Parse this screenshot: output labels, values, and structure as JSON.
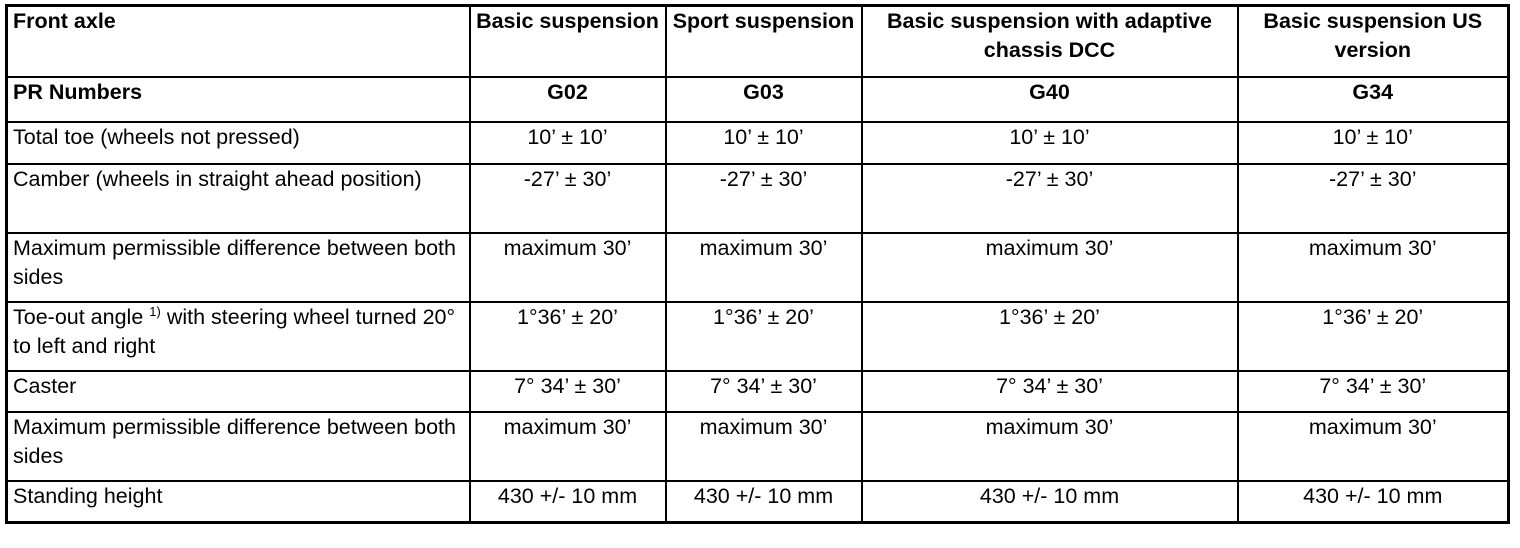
{
  "header": {
    "front_axle": "Front axle",
    "col1": "Basic suspension",
    "col2": "Sport suspension",
    "col3": "Basic suspension with adaptive chassis DCC",
    "col4": "Basic suspension US version"
  },
  "pr_row": {
    "label": "PR Numbers",
    "values": [
      "G02",
      "G03",
      "G40",
      "G34"
    ]
  },
  "rows": [
    {
      "label": "Total toe (wheels not pressed)",
      "values": [
        "10’ ± 10’",
        "10’ ± 10’",
        "10’ ± 10’",
        "10’ ± 10’"
      ]
    },
    {
      "label": "Camber (wheels in straight ahead position)",
      "values": [
        "-27’ ± 30’",
        "-27’ ± 30’",
        "-27’ ± 30’",
        "-27’ ± 30’"
      ]
    },
    {
      "label": "Maximum permissible difference between both sides",
      "values": [
        "maximum 30’",
        "maximum 30’",
        "maximum 30’",
        "maximum 30’"
      ]
    },
    {
      "label_part1": "Toe-out angle",
      "label_sup": "1)",
      "label_part2": "with steering wheel turned 20° to left and right",
      "values": [
        "1°36’ ± 20’",
        "1°36’ ± 20’",
        "1°36’ ± 20’",
        "1°36’ ± 20’"
      ]
    },
    {
      "label": "Caster",
      "values": [
        "7° 34’ ± 30’",
        "7° 34’ ± 30’",
        "7° 34’ ± 30’",
        "7° 34’ ± 30’"
      ]
    },
    {
      "label": "Maximum permissible difference between both sides",
      "values": [
        "maximum 30’",
        "maximum 30’",
        "maximum 30’",
        "maximum 30’"
      ]
    },
    {
      "label": "Standing height",
      "values": [
        "430 +/- 10 mm",
        "430 +/- 10 mm",
        "430 +/- 10 mm",
        "430 +/- 10 mm"
      ]
    }
  ]
}
